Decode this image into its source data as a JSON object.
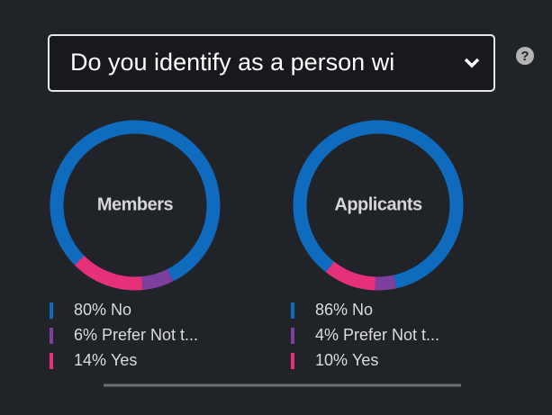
{
  "select": {
    "text": "Do you identify as a person wi"
  },
  "help_icon": "?",
  "chart_data": [
    {
      "type": "donut",
      "title": "Members",
      "categories": [
        "No",
        "Prefer Not t...",
        "Yes"
      ],
      "values": [
        80,
        6,
        14
      ],
      "value_labels": [
        "80%",
        "6%",
        "14%"
      ],
      "colors": [
        "#0f6bbd",
        "#7d3f9e",
        "#e7307a"
      ]
    },
    {
      "type": "donut",
      "title": "Applicants",
      "categories": [
        "No",
        "Prefer Not t...",
        "Yes"
      ],
      "values": [
        86,
        4,
        10
      ],
      "value_labels": [
        "86%",
        "4%",
        "10%"
      ],
      "colors": [
        "#0f6bbd",
        "#7d3f9e",
        "#e7307a"
      ]
    }
  ]
}
